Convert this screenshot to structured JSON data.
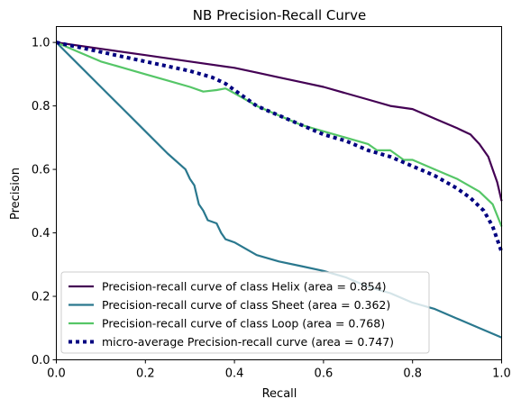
{
  "chart_data": {
    "type": "line",
    "title": "NB Precision-Recall Curve",
    "xlabel": "Recall",
    "ylabel": "Precision",
    "xlim": [
      0.0,
      1.0
    ],
    "ylim": [
      0.0,
      1.05
    ],
    "xticks": [
      "0.0",
      "0.2",
      "0.4",
      "0.6",
      "0.8",
      "1.0"
    ],
    "yticks": [
      "0.0",
      "0.2",
      "0.4",
      "0.6",
      "0.8",
      "1.0"
    ],
    "grid": false,
    "legend_position": "lower-left",
    "series": [
      {
        "name": "Precision-recall curve of class Helix (area = 0.854)",
        "color": "#440154",
        "style": "solid",
        "x": [
          0.0,
          0.1,
          0.2,
          0.3,
          0.4,
          0.45,
          0.5,
          0.55,
          0.6,
          0.65,
          0.7,
          0.75,
          0.8,
          0.85,
          0.9,
          0.93,
          0.95,
          0.97,
          0.98,
          0.99,
          1.0
        ],
        "y": [
          1.0,
          0.98,
          0.96,
          0.94,
          0.92,
          0.905,
          0.89,
          0.875,
          0.86,
          0.84,
          0.82,
          0.8,
          0.79,
          0.76,
          0.73,
          0.71,
          0.68,
          0.64,
          0.6,
          0.56,
          0.5
        ]
      },
      {
        "name": "Precision-recall curve of class Sheet (area = 0.362)",
        "color": "#2a788e",
        "style": "solid",
        "x": [
          0.0,
          0.05,
          0.1,
          0.15,
          0.2,
          0.25,
          0.29,
          0.3,
          0.31,
          0.32,
          0.33,
          0.34,
          0.36,
          0.37,
          0.38,
          0.4,
          0.45,
          0.5,
          0.55,
          0.6,
          0.65,
          0.7,
          0.75,
          0.8,
          0.85,
          0.9,
          0.95,
          1.0
        ],
        "y": [
          1.0,
          0.93,
          0.86,
          0.79,
          0.72,
          0.65,
          0.6,
          0.57,
          0.55,
          0.49,
          0.47,
          0.44,
          0.43,
          0.4,
          0.38,
          0.37,
          0.33,
          0.31,
          0.295,
          0.28,
          0.26,
          0.23,
          0.21,
          0.18,
          0.16,
          0.13,
          0.1,
          0.07
        ]
      },
      {
        "name": "Precision-recall curve of class Loop (area = 0.768)",
        "color": "#55c667",
        "style": "solid",
        "x": [
          0.0,
          0.05,
          0.1,
          0.15,
          0.2,
          0.25,
          0.3,
          0.33,
          0.36,
          0.38,
          0.4,
          0.45,
          0.5,
          0.55,
          0.6,
          0.65,
          0.7,
          0.72,
          0.75,
          0.78,
          0.8,
          0.85,
          0.9,
          0.95,
          0.98,
          1.0
        ],
        "y": [
          1.0,
          0.97,
          0.94,
          0.92,
          0.9,
          0.88,
          0.86,
          0.845,
          0.85,
          0.855,
          0.84,
          0.8,
          0.77,
          0.74,
          0.72,
          0.7,
          0.68,
          0.66,
          0.66,
          0.63,
          0.63,
          0.6,
          0.57,
          0.53,
          0.49,
          0.42
        ]
      },
      {
        "name": "micro-average Precision-recall curve (area = 0.747)",
        "color": "#000080",
        "style": "dotted",
        "x": [
          0.0,
          0.1,
          0.2,
          0.3,
          0.35,
          0.38,
          0.4,
          0.45,
          0.5,
          0.55,
          0.6,
          0.65,
          0.7,
          0.75,
          0.8,
          0.85,
          0.9,
          0.93,
          0.96,
          0.98,
          1.0
        ],
        "y": [
          1.0,
          0.97,
          0.94,
          0.91,
          0.89,
          0.87,
          0.85,
          0.8,
          0.77,
          0.74,
          0.71,
          0.69,
          0.66,
          0.64,
          0.61,
          0.58,
          0.54,
          0.51,
          0.47,
          0.42,
          0.34
        ]
      }
    ]
  }
}
